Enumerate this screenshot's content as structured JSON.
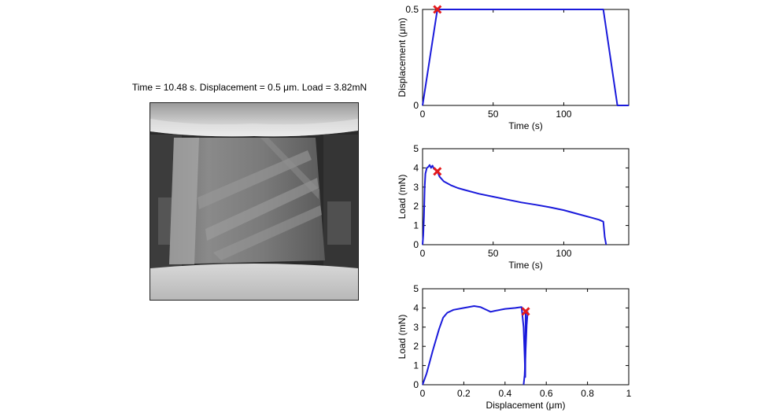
{
  "caption": "Time = 10.48 s. Displacement = 0.5 μm. Load = 3.82mN",
  "colors": {
    "line": "#1a1adb",
    "marker": "#e31a1c"
  },
  "image": {
    "description_icon": "sem-micropillar-image"
  },
  "chart_data": [
    {
      "type": "line",
      "xlabel": "Time (s)",
      "ylabel": "Displacement (μm)",
      "xlim": [
        0,
        146
      ],
      "ylim": [
        0,
        0.5
      ],
      "xticks": [
        0,
        50,
        100
      ],
      "yticks": [
        0,
        0.5
      ],
      "ytick_labels": [
        "0",
        "0.5"
      ],
      "grid": false,
      "series": [
        {
          "x": [
            0,
            10.48,
            128,
            138,
            146
          ],
          "y": [
            0,
            0.5,
            0.5,
            0,
            0
          ]
        }
      ],
      "marker": {
        "x": 10.48,
        "y": 0.5
      }
    },
    {
      "type": "line",
      "xlabel": "Time (s)",
      "ylabel": "Load (mN)",
      "xlim": [
        0,
        146
      ],
      "ylim": [
        0,
        5
      ],
      "xticks": [
        0,
        50,
        100
      ],
      "yticks": [
        0,
        1,
        2,
        3,
        4,
        5
      ],
      "ytick_labels": [
        "0",
        "1",
        "2",
        "3",
        "4",
        "5"
      ],
      "grid": false,
      "series": [
        {
          "x": [
            0,
            0.5,
            1,
            1.5,
            2,
            3,
            4,
            5,
            6,
            7,
            8,
            9,
            10,
            10.48,
            12,
            15,
            20,
            25,
            30,
            40,
            50,
            60,
            70,
            80,
            90,
            100,
            110,
            120,
            125,
            128,
            129,
            130
          ],
          "y": [
            0,
            0.5,
            1.5,
            3.0,
            3.7,
            4.0,
            4.05,
            4.15,
            4.0,
            4.12,
            3.95,
            3.9,
            3.85,
            3.82,
            3.55,
            3.3,
            3.1,
            2.95,
            2.85,
            2.65,
            2.5,
            2.35,
            2.2,
            2.08,
            1.95,
            1.8,
            1.6,
            1.4,
            1.3,
            1.2,
            0.4,
            0
          ]
        }
      ],
      "marker": {
        "x": 10.48,
        "y": 3.82
      }
    },
    {
      "type": "line",
      "xlabel": "Displacement (μm)",
      "ylabel": "Load (mN)",
      "xlim": [
        0,
        1
      ],
      "ylim": [
        0,
        5
      ],
      "xticks": [
        0,
        0.2,
        0.4,
        0.6,
        0.8,
        1
      ],
      "xtick_labels": [
        "0",
        "0.2",
        "0.4",
        "0.6",
        "0.8",
        "1"
      ],
      "yticks": [
        0,
        1,
        2,
        3,
        4,
        5
      ],
      "ytick_labels": [
        "0",
        "1",
        "2",
        "3",
        "4",
        "5"
      ],
      "grid": false,
      "series": [
        {
          "x": [
            0,
            0.02,
            0.05,
            0.08,
            0.1,
            0.12,
            0.15,
            0.2,
            0.25,
            0.28,
            0.3,
            0.33,
            0.35,
            0.4,
            0.45,
            0.48,
            0.49,
            0.495,
            0.498,
            0.5
          ],
          "y": [
            0,
            0.6,
            1.8,
            2.9,
            3.5,
            3.75,
            3.9,
            4.0,
            4.1,
            4.05,
            3.95,
            3.8,
            3.85,
            3.95,
            4.0,
            4.05,
            3.0,
            1.5,
            0.4,
            3.82
          ]
        },
        {
          "x": [
            0.49,
            0.495,
            0.5,
            0.505,
            0.51
          ],
          "y": [
            0,
            0.5,
            1.8,
            3.1,
            3.82
          ]
        }
      ],
      "marker": {
        "x": 0.5,
        "y": 3.82
      }
    }
  ]
}
